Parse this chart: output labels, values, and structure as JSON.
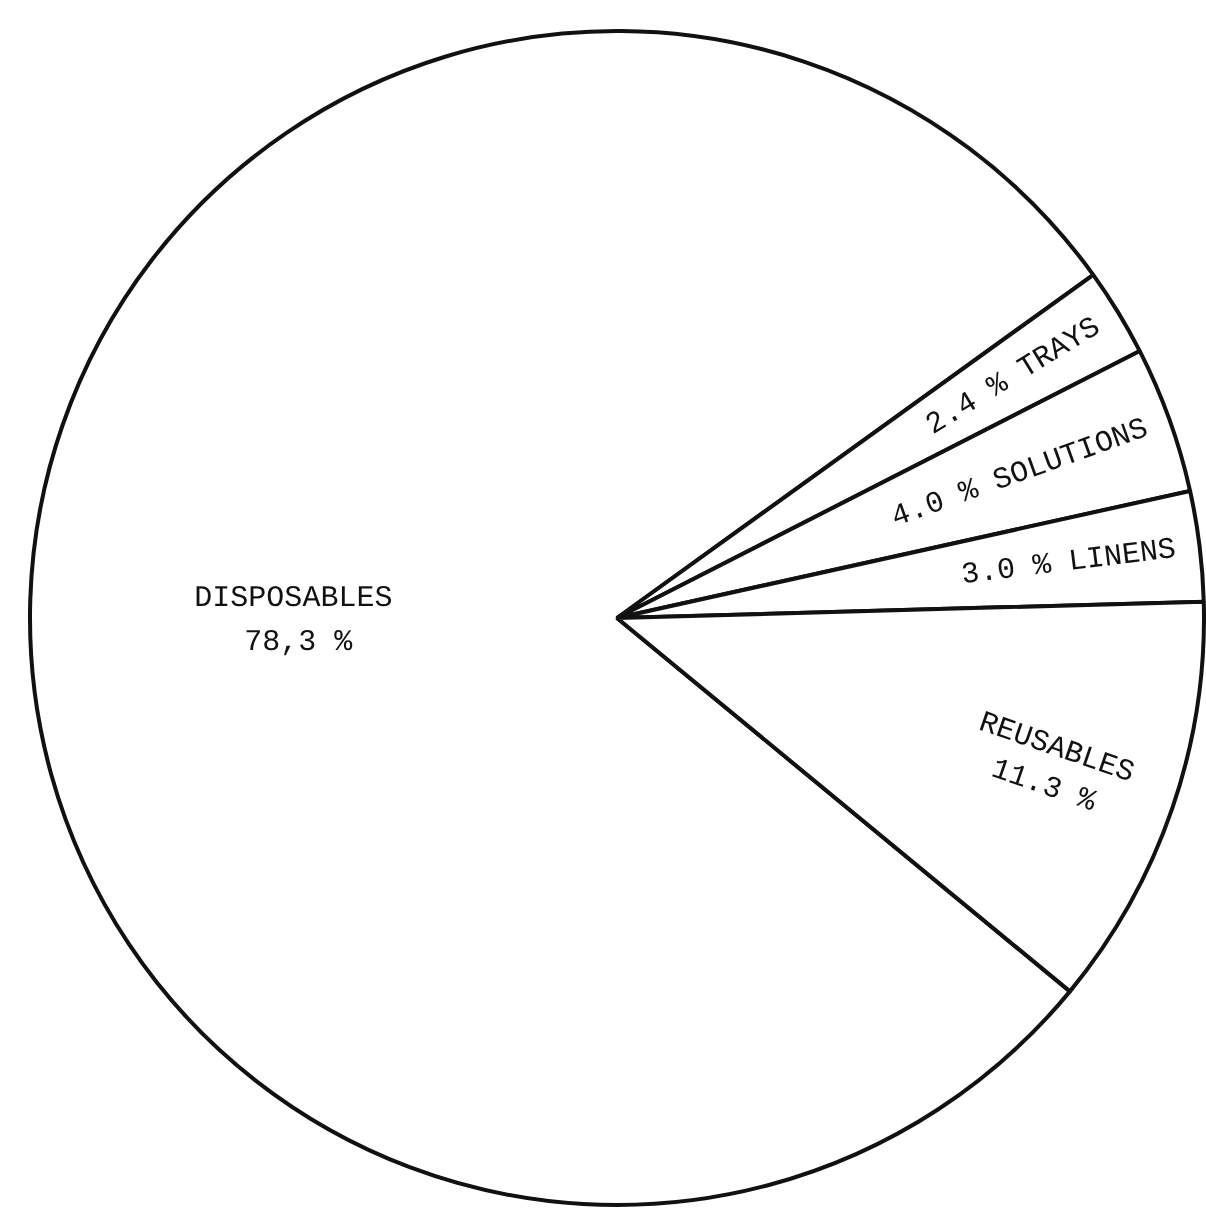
{
  "chart_data": {
    "type": "pie",
    "categories": [
      "DISPOSABLES",
      "TRAYS",
      "SOLUTIONS",
      "LINENS",
      "REUSABLES"
    ],
    "values": [
      78.3,
      2.4,
      4.0,
      3.0,
      11.3
    ],
    "colors": [
      "#ffffff",
      "#ffffff",
      "#ffffff",
      "#ffffff",
      "#ffffff"
    ],
    "value_labels": [
      "78,3 %",
      "2.4 %",
      "4.0 %",
      "3.0 %",
      "11.3 %"
    ],
    "legend": false
  }
}
